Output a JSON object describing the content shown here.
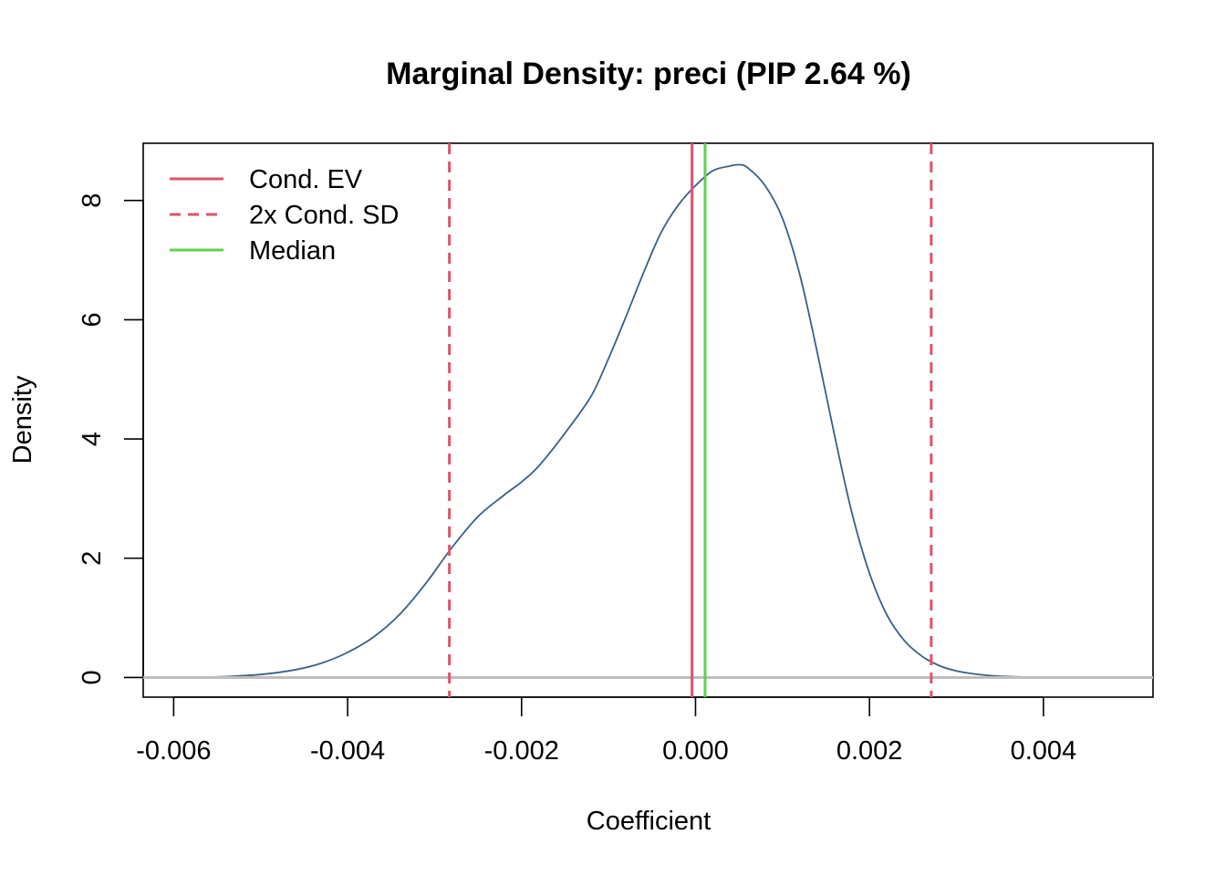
{
  "chart_data": {
    "type": "line",
    "title": "Marginal Density: preci (PIP 2.64 %)",
    "xlabel": "Coefficient",
    "ylabel": "Density",
    "xlim": [
      -0.00635,
      0.00526
    ],
    "ylim": [
      -0.33,
      8.96
    ],
    "x_ticks": [
      {
        "value": -0.006,
        "label": "-0.006"
      },
      {
        "value": -0.004,
        "label": "-0.004"
      },
      {
        "value": -0.002,
        "label": "-0.002"
      },
      {
        "value": 0.0,
        "label": "0.000"
      },
      {
        "value": 0.002,
        "label": "0.002"
      },
      {
        "value": 0.004,
        "label": "0.004"
      }
    ],
    "y_ticks": [
      {
        "value": 0,
        "label": "0"
      },
      {
        "value": 2,
        "label": "2"
      },
      {
        "value": 4,
        "label": "4"
      },
      {
        "value": 6,
        "label": "6"
      },
      {
        "value": 8,
        "label": "8"
      }
    ],
    "grid": false,
    "legend_position": "top-left",
    "series": [
      {
        "name": "density",
        "color": "#3a6085",
        "x": [
          -0.006,
          -0.0055,
          -0.005,
          -0.0046,
          -0.0043,
          -0.004,
          -0.0037,
          -0.0034,
          -0.0031,
          -0.0028,
          -0.0025,
          -0.0022,
          -0.002,
          -0.0018,
          -0.0015,
          -0.0012,
          -0.001,
          -0.0008,
          -0.0006,
          -0.0004,
          -0.0002,
          0.0,
          0.0002,
          0.0004,
          0.0005,
          0.0006,
          0.0008,
          0.001,
          0.0012,
          0.0014,
          0.0016,
          0.0018,
          0.002,
          0.0022,
          0.0024,
          0.0026,
          0.0028,
          0.003,
          0.0032,
          0.0034,
          0.0036,
          0.0038,
          0.004,
          0.0045,
          0.005
        ],
        "y": [
          0.0,
          0.01,
          0.05,
          0.13,
          0.24,
          0.42,
          0.68,
          1.06,
          1.58,
          2.18,
          2.7,
          3.06,
          3.28,
          3.55,
          4.1,
          4.72,
          5.35,
          6.05,
          6.78,
          7.45,
          7.92,
          8.25,
          8.5,
          8.58,
          8.6,
          8.55,
          8.25,
          7.7,
          6.75,
          5.45,
          4.05,
          2.75,
          1.75,
          1.05,
          0.62,
          0.36,
          0.2,
          0.11,
          0.06,
          0.03,
          0.015,
          0.008,
          0.004,
          0.001,
          0.0
        ]
      }
    ],
    "vertical_lines": [
      {
        "name": "Cond. EV",
        "x": -4e-05,
        "color": "#df536b",
        "dash": "solid"
      },
      {
        "name": "2x Cond. SD",
        "x": -0.00283,
        "color": "#df536b",
        "dash": "dashed"
      },
      {
        "name": "2x Cond. SD",
        "x": 0.00271,
        "color": "#df536b",
        "dash": "dashed"
      },
      {
        "name": "Median",
        "x": 0.00011,
        "color": "#61d04f",
        "dash": "solid"
      }
    ],
    "zero_line_color": "#bebebe",
    "legend": [
      {
        "label": "Cond. EV",
        "color": "#df536b",
        "dash": "solid"
      },
      {
        "label": "2x Cond. SD",
        "color": "#df536b",
        "dash": "dashed"
      },
      {
        "label": "Median",
        "color": "#61d04f",
        "dash": "solid"
      }
    ]
  }
}
